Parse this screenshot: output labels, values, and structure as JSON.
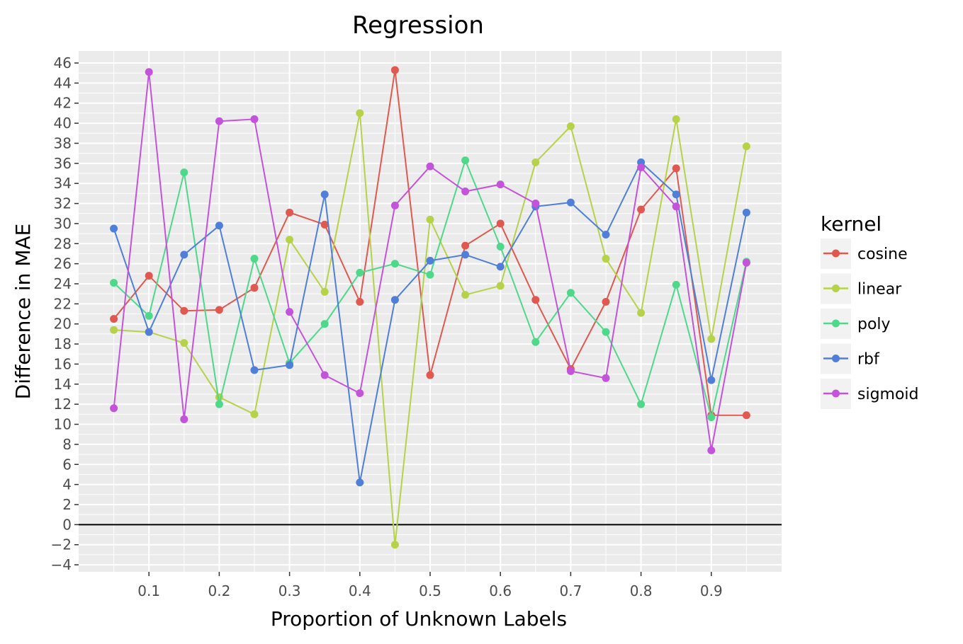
{
  "chart_data": {
    "type": "line",
    "title": "Regression",
    "xlabel": "Proportion of Unknown Labels",
    "ylabel": "Difference in MAE",
    "xlim": [
      0.0,
      1.0
    ],
    "ylim": [
      -4.7,
      47.2
    ],
    "x_ticks": [
      0.1,
      0.2,
      0.3,
      0.4,
      0.5,
      0.6,
      0.7,
      0.8,
      0.9
    ],
    "x_tick_labels": [
      "0.1",
      "0.2",
      "0.3",
      "0.4",
      "0.5",
      "0.6",
      "0.7",
      "0.8",
      "0.9"
    ],
    "y_ticks": [
      -4,
      -2,
      0,
      2,
      4,
      6,
      8,
      10,
      12,
      14,
      16,
      18,
      20,
      22,
      24,
      26,
      28,
      30,
      32,
      34,
      36,
      38,
      40,
      42,
      44,
      46
    ],
    "y_tick_labels": [
      "−4",
      "−2",
      "0",
      "2",
      "4",
      "6",
      "8",
      "10",
      "12",
      "14",
      "16",
      "18",
      "20",
      "22",
      "24",
      "26",
      "28",
      "30",
      "32",
      "34",
      "36",
      "38",
      "40",
      "42",
      "44",
      "46"
    ],
    "hline": 0,
    "grid": true,
    "legend_title": "kernel",
    "legend_position": "right",
    "series": [
      {
        "name": "cosine",
        "color": "#E0584F",
        "x": [
          0.05,
          0.1,
          0.15,
          0.2,
          0.25,
          0.3,
          0.35,
          0.4,
          0.45,
          0.5,
          0.55,
          0.6,
          0.65,
          0.7,
          0.75,
          0.8,
          0.85,
          0.9,
          0.95
        ],
        "y": [
          20.5,
          24.8,
          21.3,
          21.4,
          23.6,
          31.1,
          29.9,
          22.2,
          45.3,
          14.9,
          27.8,
          30.0,
          22.4,
          15.5,
          22.2,
          31.4,
          35.5,
          10.9,
          10.9
        ]
      },
      {
        "name": "linear",
        "color": "#B5D249",
        "x": [
          0.05,
          0.1,
          0.15,
          0.2,
          0.25,
          0.3,
          0.35,
          0.4,
          0.45,
          0.5,
          0.55,
          0.6,
          0.65,
          0.7,
          0.75,
          0.8,
          0.85,
          0.9,
          0.95
        ],
        "y": [
          19.4,
          19.2,
          18.1,
          12.7,
          11.0,
          28.4,
          23.2,
          41.0,
          -2.0,
          30.4,
          22.9,
          23.8,
          36.1,
          39.7,
          26.5,
          21.1,
          40.4,
          18.5,
          37.7
        ]
      },
      {
        "name": "poly",
        "color": "#4ED98A",
        "x": [
          0.05,
          0.1,
          0.15,
          0.2,
          0.25,
          0.3,
          0.35,
          0.4,
          0.45,
          0.5,
          0.55,
          0.6,
          0.65,
          0.7,
          0.75,
          0.8,
          0.85,
          0.9,
          0.95
        ],
        "y": [
          24.1,
          20.8,
          35.1,
          12.0,
          26.5,
          16.1,
          20.0,
          25.1,
          26.0,
          24.9,
          36.3,
          27.7,
          18.2,
          23.1,
          19.2,
          12.0,
          23.9,
          10.7,
          26.2
        ]
      },
      {
        "name": "rbf",
        "color": "#4F7FD8",
        "x": [
          0.05,
          0.1,
          0.15,
          0.2,
          0.25,
          0.3,
          0.35,
          0.4,
          0.45,
          0.5,
          0.55,
          0.6,
          0.65,
          0.7,
          0.75,
          0.8,
          0.85,
          0.9,
          0.95
        ],
        "y": [
          29.5,
          19.2,
          26.9,
          29.8,
          15.4,
          15.9,
          32.9,
          4.2,
          22.4,
          26.3,
          26.9,
          25.7,
          31.7,
          32.1,
          28.9,
          36.1,
          32.9,
          14.4,
          31.1
        ]
      },
      {
        "name": "sigmoid",
        "color": "#C453DB",
        "x": [
          0.05,
          0.1,
          0.15,
          0.2,
          0.25,
          0.3,
          0.35,
          0.4,
          0.45,
          0.5,
          0.55,
          0.6,
          0.65,
          0.7,
          0.75,
          0.8,
          0.85,
          0.9,
          0.95
        ],
        "y": [
          11.6,
          45.1,
          10.5,
          40.2,
          40.4,
          21.2,
          14.9,
          13.1,
          31.8,
          35.7,
          33.2,
          33.9,
          32.0,
          15.3,
          14.6,
          35.6,
          31.7,
          7.4,
          26.1
        ]
      }
    ]
  }
}
